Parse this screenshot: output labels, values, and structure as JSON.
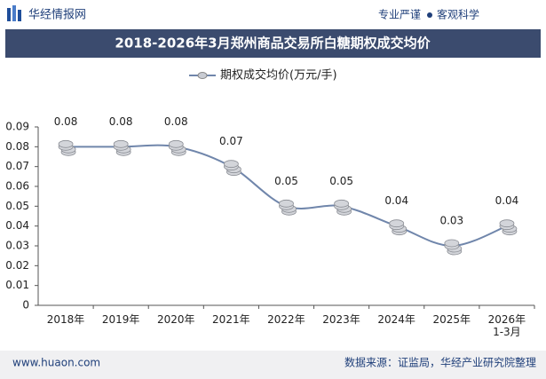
{
  "header": {
    "logo": "华经情报网",
    "slogan_left": "专业严谨",
    "slogan_right": "客观科学"
  },
  "chart_data": {
    "type": "line",
    "title": "2018-2026年3月郑州商品交易所白糖期权成交均价",
    "categories": [
      "2018年",
      "2019年",
      "2020年",
      "2021年",
      "2022年",
      "2023年",
      "2024年",
      "2025年",
      "2026年\n1-3月"
    ],
    "series": [
      {
        "name": "期权成交均价(万元/手)",
        "color": "#7086ab",
        "values": [
          0.08,
          0.08,
          0.08,
          0.07,
          0.05,
          0.05,
          0.04,
          0.03,
          0.04
        ]
      }
    ],
    "ylim": [
      0,
      0.09
    ],
    "yticks": [
      0,
      0.01,
      0.02,
      0.03,
      0.04,
      0.05,
      0.06,
      0.07,
      0.08,
      0.09
    ]
  },
  "footer": {
    "website": "www.huaon.com",
    "source": "数据来源：证监局，华经产业研究院整理"
  }
}
